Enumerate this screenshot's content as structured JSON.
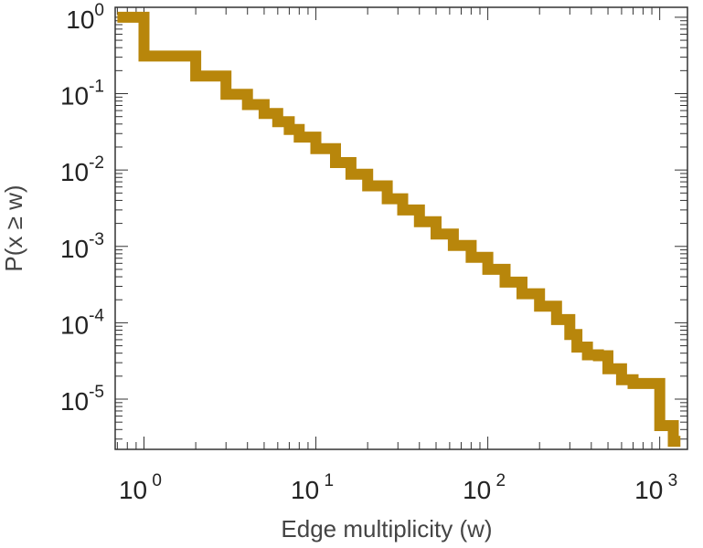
{
  "chart_data": {
    "type": "line",
    "xlabel": "Edge multiplicity (w)",
    "ylabel": "P(x ≥ w)",
    "xscale": "log",
    "yscale": "log",
    "xlim": [
      0.68,
      1450
    ],
    "ylim": [
      2.2e-06,
      1.35
    ],
    "xticks": [
      {
        "value": 1,
        "base": "10",
        "exp": "0"
      },
      {
        "value": 10,
        "base": "10",
        "exp": "1"
      },
      {
        "value": 100,
        "base": "10",
        "exp": "2"
      },
      {
        "value": 1000,
        "base": "10",
        "exp": "3"
      }
    ],
    "yticks": [
      {
        "value": 1,
        "base": "10",
        "exp": "0"
      },
      {
        "value": 0.1,
        "base": "10",
        "exp": "-1"
      },
      {
        "value": 0.01,
        "base": "10",
        "exp": "-2"
      },
      {
        "value": 0.001,
        "base": "10",
        "exp": "-3"
      },
      {
        "value": 0.0001,
        "base": "10",
        "exp": "-4"
      },
      {
        "value": 1e-05,
        "base": "10",
        "exp": "-5"
      }
    ],
    "grid": false,
    "series": [
      {
        "color": "#b8860b",
        "step": true,
        "x": [
          0.7,
          1,
          2,
          3,
          4,
          5,
          6,
          7,
          8,
          10,
          13,
          16,
          20,
          26,
          32,
          40,
          50,
          63,
          80,
          100,
          126,
          158,
          200,
          251,
          300,
          330,
          380,
          440,
          500,
          600,
          700,
          800,
          900,
          1000,
          1200
        ],
        "y": [
          1,
          0.31,
          0.17,
          0.098,
          0.072,
          0.055,
          0.043,
          0.034,
          0.027,
          0.019,
          0.0125,
          0.0088,
          0.0062,
          0.0042,
          0.003,
          0.0021,
          0.00145,
          0.00103,
          0.00072,
          0.0005,
          0.00034,
          0.00024,
          0.000165,
          0.00011,
          7e-05,
          4.8e-05,
          3.8e-05,
          3.7e-05,
          2.5e-05,
          1.8e-05,
          1.6e-05,
          1.6e-05,
          1.6e-05,
          4.5e-06,
          2.8e-06
        ]
      }
    ]
  }
}
